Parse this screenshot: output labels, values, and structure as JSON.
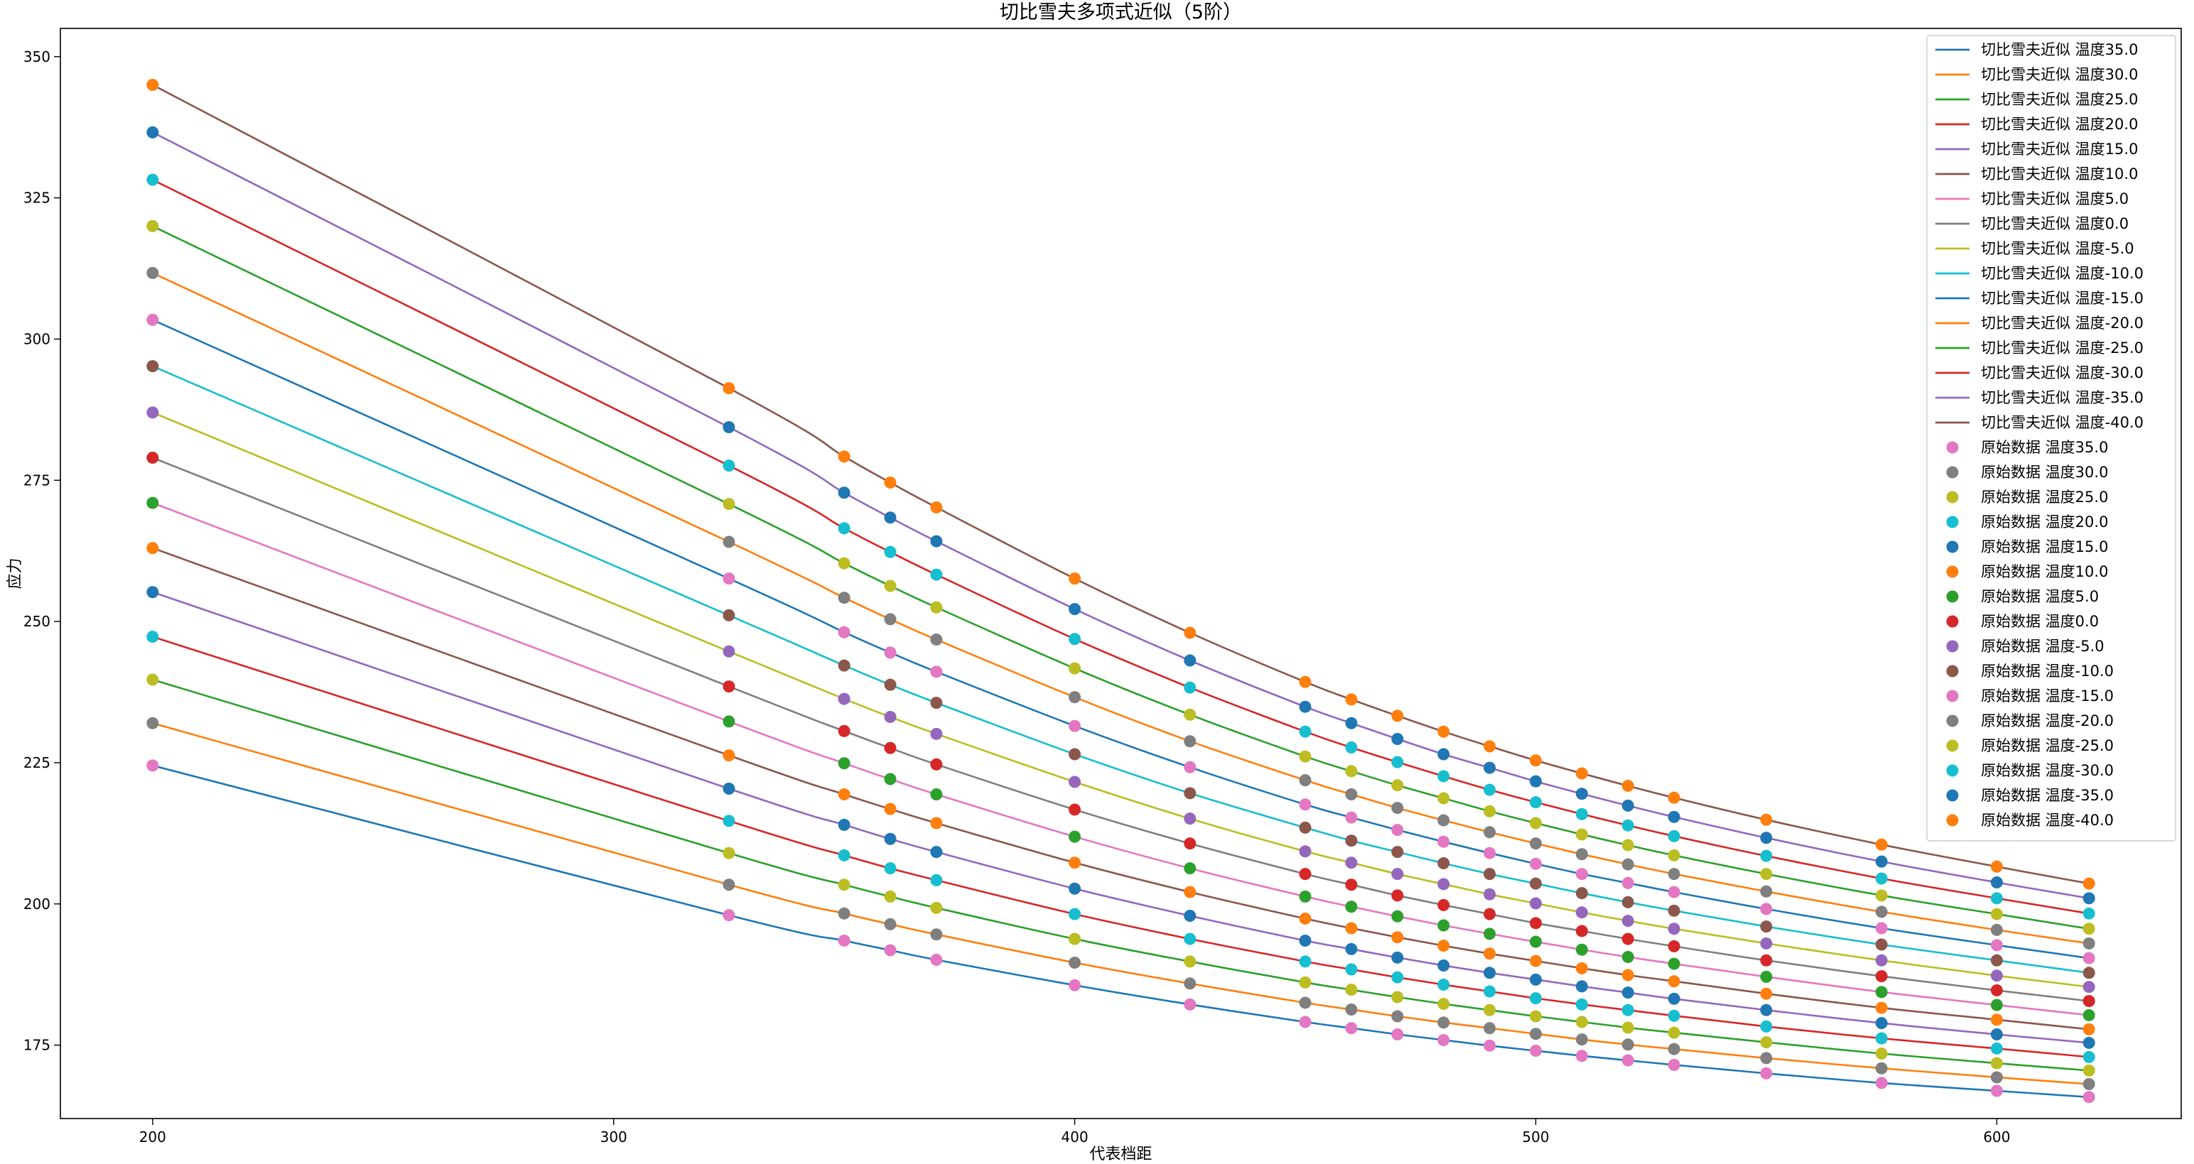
{
  "chart_data": {
    "type": "line",
    "title": "切比雪夫多项式近似（5阶）",
    "xlabel": "代表档距",
    "ylabel": "应力",
    "xlim": [
      180,
      640
    ],
    "ylim": [
      162,
      355
    ],
    "xticks": [
      200,
      300,
      400,
      500,
      600
    ],
    "yticks": [
      175,
      200,
      225,
      250,
      275,
      300,
      325,
      350
    ],
    "grid": false,
    "legend_position": "top-right",
    "x": [
      200,
      325,
      350,
      360,
      370,
      400,
      425,
      450,
      460,
      470,
      480,
      490,
      500,
      510,
      520,
      530,
      550,
      575,
      600,
      620
    ],
    "temperatures": [
      "35.0",
      "30.0",
      "25.0",
      "20.0",
      "15.0",
      "10.0",
      "5.0",
      "0.0",
      "-5.0",
      "-10.0",
      "-15.0",
      "-20.0",
      "-25.0",
      "-30.0",
      "-35.0",
      "-40.0"
    ],
    "line_colors": [
      "#1f77b4",
      "#ff7f0e",
      "#2ca02c",
      "#d62728",
      "#9467bd",
      "#8c564b",
      "#e377c2",
      "#7f7f7f",
      "#bcbd22",
      "#17becf",
      "#1f77b4",
      "#ff7f0e",
      "#2ca02c",
      "#d62728",
      "#9467bd",
      "#8c564b"
    ],
    "point_colors": [
      "#e377c2",
      "#7f7f7f",
      "#bcbd22",
      "#17becf",
      "#1f77b4",
      "#ff7f0e",
      "#2ca02c",
      "#d62728",
      "#9467bd",
      "#8c564b",
      "#e377c2",
      "#7f7f7f",
      "#bcbd22",
      "#17becf",
      "#1f77b4",
      "#ff7f0e"
    ],
    "line_series": [
      {
        "name": "切比雪夫近似 温度35.0",
        "values": [
          224.5,
          198.0,
          193.5,
          191.8,
          190.1,
          185.6,
          182.2,
          179.1,
          178.0,
          176.9,
          175.9,
          174.9,
          174.0,
          173.1,
          172.3,
          171.5,
          170.0,
          168.3,
          166.9,
          165.8
        ]
      },
      {
        "name": "切比雪夫近似 温度30.0",
        "values": [
          232.0,
          203.4,
          198.3,
          196.4,
          194.6,
          189.6,
          185.9,
          182.5,
          181.3,
          180.1,
          179.0,
          178.0,
          177.0,
          176.0,
          175.1,
          174.3,
          172.7,
          170.9,
          169.3,
          168.1
        ]
      },
      {
        "name": "切比雪夫近似 温度25.0",
        "values": [
          239.7,
          209.0,
          203.4,
          201.3,
          199.3,
          193.8,
          189.8,
          186.1,
          184.8,
          183.5,
          182.3,
          181.2,
          180.1,
          179.1,
          178.1,
          177.2,
          175.5,
          173.5,
          171.8,
          170.5
        ]
      },
      {
        "name": "切比雪夫近似 温度20.0",
        "values": [
          247.3,
          214.7,
          208.6,
          206.3,
          204.2,
          198.2,
          193.8,
          189.8,
          188.4,
          187.0,
          185.7,
          184.5,
          183.3,
          182.2,
          181.2,
          180.2,
          178.3,
          176.2,
          174.4,
          172.9
        ]
      },
      {
        "name": "切比雪夫近似 温度15.0",
        "values": [
          255.2,
          220.4,
          214.0,
          211.5,
          209.2,
          202.7,
          197.9,
          193.5,
          192.0,
          190.5,
          189.1,
          187.8,
          186.6,
          185.4,
          184.3,
          183.2,
          181.2,
          178.9,
          176.9,
          175.4
        ]
      },
      {
        "name": "切比雪夫近似 温度10.0",
        "values": [
          263.0,
          226.3,
          219.4,
          216.8,
          214.3,
          207.3,
          202.1,
          197.4,
          195.7,
          194.1,
          192.6,
          191.2,
          189.9,
          188.6,
          187.4,
          186.3,
          184.1,
          181.6,
          179.5,
          177.8
        ]
      },
      {
        "name": "切比雪夫近似 温度5.0",
        "values": [
          271.0,
          232.3,
          224.9,
          222.1,
          219.4,
          211.9,
          206.3,
          201.3,
          199.5,
          197.8,
          196.2,
          194.7,
          193.3,
          191.9,
          190.6,
          189.4,
          187.1,
          184.4,
          182.1,
          180.3
        ]
      },
      {
        "name": "切比雪夫近似 温度0.0",
        "values": [
          279.0,
          238.5,
          230.6,
          227.6,
          224.7,
          216.7,
          210.7,
          205.3,
          203.4,
          201.5,
          199.8,
          198.2,
          196.6,
          195.2,
          193.8,
          192.5,
          190.0,
          187.2,
          184.7,
          182.8
        ]
      },
      {
        "name": "切比雪夫近似 温度-5.0",
        "values": [
          287.0,
          244.7,
          236.3,
          233.1,
          230.1,
          221.6,
          215.1,
          209.3,
          207.3,
          205.3,
          203.5,
          201.7,
          200.1,
          198.5,
          197.0,
          195.6,
          193.0,
          190.0,
          187.3,
          185.3
        ]
      },
      {
        "name": "切比雪夫近似 温度-10.0",
        "values": [
          295.2,
          251.1,
          242.2,
          238.8,
          235.6,
          226.5,
          219.6,
          213.5,
          211.2,
          209.2,
          207.2,
          205.3,
          203.6,
          201.9,
          200.3,
          198.8,
          196.0,
          192.8,
          190.0,
          187.8
        ]
      },
      {
        "name": "切比雪夫近似 温度-15.0",
        "values": [
          303.4,
          257.6,
          248.1,
          244.5,
          241.1,
          231.5,
          224.2,
          217.6,
          215.3,
          213.1,
          211.0,
          209.0,
          207.1,
          205.3,
          203.7,
          202.1,
          199.1,
          195.7,
          192.7,
          190.4
        ]
      },
      {
        "name": "切比雪夫近似 温度-20.0",
        "values": [
          311.7,
          264.1,
          254.2,
          250.4,
          246.8,
          236.6,
          228.8,
          221.9,
          219.4,
          217.0,
          214.8,
          212.7,
          210.7,
          208.8,
          207.0,
          205.3,
          202.2,
          198.6,
          195.4,
          193.0
        ]
      },
      {
        "name": "切比雪夫近似 温度-25.0",
        "values": [
          320.0,
          270.8,
          260.3,
          256.3,
          252.5,
          241.7,
          233.5,
          226.1,
          223.5,
          221.0,
          218.7,
          216.4,
          214.3,
          212.3,
          210.4,
          208.6,
          205.3,
          201.5,
          198.2,
          195.6
        ]
      },
      {
        "name": "切比雪夫近似 温度-30.0",
        "values": [
          328.2,
          277.6,
          266.5,
          262.3,
          258.3,
          246.9,
          238.3,
          230.5,
          227.7,
          225.1,
          222.6,
          220.2,
          218.0,
          215.9,
          213.9,
          212.0,
          208.5,
          204.5,
          201.0,
          198.3
        ]
      },
      {
        "name": "切比雪夫近似 温度-35.0",
        "values": [
          336.6,
          284.4,
          272.8,
          268.4,
          264.2,
          252.2,
          243.1,
          234.9,
          232.0,
          229.2,
          226.5,
          224.1,
          221.7,
          219.5,
          217.4,
          215.4,
          211.7,
          207.5,
          203.8,
          201.0
        ]
      },
      {
        "name": "切比雪夫近似 温度-40.0",
        "values": [
          345.0,
          291.3,
          279.2,
          274.6,
          270.2,
          257.6,
          248.0,
          239.3,
          236.2,
          233.3,
          230.5,
          227.9,
          225.4,
          223.1,
          220.9,
          218.8,
          214.9,
          210.5,
          206.6,
          203.6
        ]
      }
    ],
    "point_series": [
      {
        "name": "原始数据 温度35.0",
        "values": [
          224.5,
          198.0,
          193.5,
          191.8,
          190.1,
          185.6,
          182.2,
          179.1,
          178.0,
          176.9,
          175.9,
          174.9,
          174.0,
          173.1,
          172.3,
          171.5,
          170.0,
          168.3,
          166.9,
          165.8
        ]
      },
      {
        "name": "原始数据 温度30.0",
        "values": [
          232.0,
          203.4,
          198.3,
          196.4,
          194.6,
          189.6,
          185.9,
          182.5,
          181.3,
          180.1,
          179.0,
          178.0,
          177.0,
          176.0,
          175.1,
          174.3,
          172.7,
          170.9,
          169.3,
          168.1
        ]
      },
      {
        "name": "原始数据 温度25.0",
        "values": [
          239.7,
          209.0,
          203.4,
          201.3,
          199.3,
          193.8,
          189.8,
          186.1,
          184.8,
          183.5,
          182.3,
          181.2,
          180.1,
          179.1,
          178.1,
          177.2,
          175.5,
          173.5,
          171.8,
          170.5
        ]
      },
      {
        "name": "原始数据 温度20.0",
        "values": [
          247.3,
          214.7,
          208.6,
          206.3,
          204.2,
          198.2,
          193.8,
          189.8,
          188.4,
          187.0,
          185.7,
          184.5,
          183.3,
          182.2,
          181.2,
          180.2,
          178.3,
          176.2,
          174.4,
          172.9
        ]
      },
      {
        "name": "原始数据 温度15.0",
        "values": [
          255.2,
          220.4,
          214.0,
          211.5,
          209.2,
          202.7,
          197.9,
          193.5,
          192.0,
          190.5,
          189.1,
          187.8,
          186.6,
          185.4,
          184.3,
          183.2,
          181.2,
          178.9,
          176.9,
          175.4
        ]
      },
      {
        "name": "原始数据 温度10.0",
        "values": [
          263.0,
          226.3,
          219.4,
          216.8,
          214.3,
          207.3,
          202.1,
          197.4,
          195.7,
          194.1,
          192.6,
          191.2,
          189.9,
          188.6,
          187.4,
          186.3,
          184.1,
          181.6,
          179.5,
          177.8
        ]
      },
      {
        "name": "原始数据 温度5.0",
        "values": [
          271.0,
          232.3,
          224.9,
          222.1,
          219.4,
          211.9,
          206.3,
          201.3,
          199.5,
          197.8,
          196.2,
          194.7,
          193.3,
          191.9,
          190.6,
          189.4,
          187.1,
          184.4,
          182.1,
          180.3
        ]
      },
      {
        "name": "原始数据 温度0.0",
        "values": [
          279.0,
          238.5,
          230.6,
          227.6,
          224.7,
          216.7,
          210.7,
          205.3,
          203.4,
          201.5,
          199.8,
          198.2,
          196.6,
          195.2,
          193.8,
          192.5,
          190.0,
          187.2,
          184.7,
          182.8
        ]
      },
      {
        "name": "原始数据 温度-5.0",
        "values": [
          287.0,
          244.7,
          236.3,
          233.1,
          230.1,
          221.6,
          215.1,
          209.3,
          207.3,
          205.3,
          203.5,
          201.7,
          200.1,
          198.5,
          197.0,
          195.6,
          193.0,
          190.0,
          187.3,
          185.3
        ]
      },
      {
        "name": "原始数据 温度-10.0",
        "values": [
          295.2,
          251.1,
          242.2,
          238.8,
          235.6,
          226.5,
          219.6,
          213.5,
          211.2,
          209.2,
          207.2,
          205.3,
          203.6,
          201.9,
          200.3,
          198.8,
          196.0,
          192.8,
          190.0,
          187.8
        ]
      },
      {
        "name": "原始数据 温度-15.0",
        "values": [
          303.4,
          257.6,
          248.1,
          244.5,
          241.1,
          231.5,
          224.2,
          217.6,
          215.3,
          213.1,
          211.0,
          209.0,
          207.1,
          205.3,
          203.7,
          202.1,
          199.1,
          195.7,
          192.7,
          190.4
        ]
      },
      {
        "name": "原始数据 温度-20.0",
        "values": [
          311.7,
          264.1,
          254.2,
          250.4,
          246.8,
          236.6,
          228.8,
          221.9,
          219.4,
          217.0,
          214.8,
          212.7,
          210.7,
          208.8,
          207.0,
          205.3,
          202.2,
          198.6,
          195.4,
          193.0
        ]
      },
      {
        "name": "原始数据 温度-25.0",
        "values": [
          320.0,
          270.8,
          260.3,
          256.3,
          252.5,
          241.7,
          233.5,
          226.1,
          223.5,
          221.0,
          218.7,
          216.4,
          214.3,
          212.3,
          210.4,
          208.6,
          205.3,
          201.5,
          198.2,
          195.6
        ]
      },
      {
        "name": "原始数据 温度-30.0",
        "values": [
          328.2,
          277.6,
          266.5,
          262.3,
          258.3,
          246.9,
          238.3,
          230.5,
          227.7,
          225.1,
          222.6,
          220.2,
          218.0,
          215.9,
          213.9,
          212.0,
          208.5,
          204.5,
          201.0,
          198.3
        ]
      },
      {
        "name": "原始数据 温度-35.0",
        "values": [
          336.6,
          284.4,
          272.8,
          268.4,
          264.2,
          252.2,
          243.1,
          234.9,
          232.0,
          229.2,
          226.5,
          224.1,
          221.7,
          219.5,
          217.4,
          215.4,
          211.7,
          207.5,
          203.8,
          201.0
        ]
      },
      {
        "name": "原始数据 温度-40.0",
        "values": [
          345.0,
          291.3,
          279.2,
          274.6,
          270.2,
          257.6,
          248.0,
          239.3,
          236.2,
          233.3,
          230.5,
          227.9,
          225.4,
          223.1,
          220.9,
          218.8,
          214.9,
          210.5,
          206.6,
          203.6
        ]
      }
    ]
  }
}
